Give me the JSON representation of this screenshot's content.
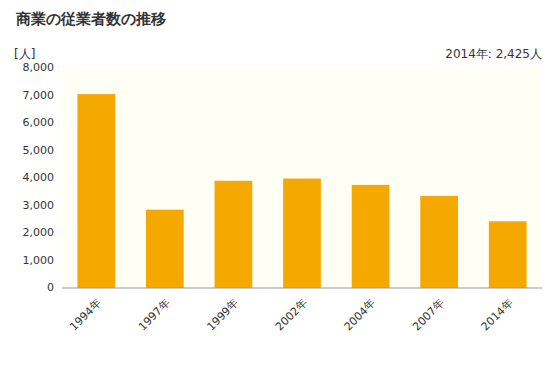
{
  "chart_data": {
    "type": "bar",
    "title": "商業の従業者数の推移",
    "ylabel": "[人]",
    "annotation": "2014年: 2,425人",
    "categories": [
      "1994年",
      "1997年",
      "1999年",
      "2002年",
      "2004年",
      "2007年",
      "2014年"
    ],
    "values": [
      7050,
      2850,
      3900,
      3980,
      3750,
      3350,
      2425
    ],
    "color": "#F5A800",
    "ylim": [
      0,
      8000
    ],
    "yticks": [
      0,
      {
        "value": 1000,
        "label": "1,000"
      },
      {
        "value": 2000,
        "label": "2,000"
      },
      {
        "value": 3000,
        "label": "3,000"
      },
      {
        "value": 4000,
        "label": "4,000"
      },
      {
        "value": 5000,
        "label": "5,000"
      },
      {
        "value": 6000,
        "label": "6,000"
      },
      {
        "value": 7000,
        "label": "7,000"
      },
      {
        "value": 8000,
        "label": "8,000"
      }
    ],
    "grid": false
  }
}
